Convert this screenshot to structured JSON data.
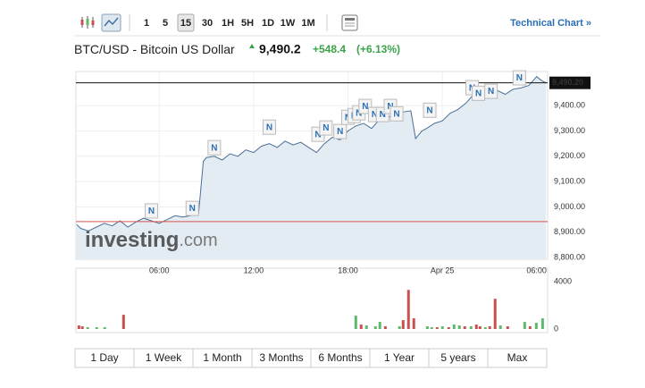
{
  "toolbar": {
    "intervals": [
      "1",
      "5",
      "15",
      "30",
      "1H",
      "5H",
      "1D",
      "1W",
      "1M"
    ],
    "link": "Technical Chart »"
  },
  "header": {
    "name": "BTC/USD - Bitcoin US Dollar",
    "price": "9,490.2",
    "change": "+548.4",
    "change_pct": "(+6.13%)"
  },
  "watermark": [
    "investing",
    ".com"
  ],
  "ranges": [
    "1 Day",
    "1 Week",
    "1 Month",
    "3 Months",
    "6 Months",
    "1 Year",
    "5 years",
    "Max"
  ],
  "chart_data": [
    {
      "type": "area",
      "color": "#4a6f96",
      "fill": "#e3ebf3",
      "x": [
        0.75,
        1.0,
        1.5,
        2,
        2.5,
        3,
        3.5,
        4,
        4.5,
        5,
        5.5,
        6,
        6.5,
        7,
        7.5,
        8,
        8.5,
        8.8,
        9,
        9.5,
        10,
        10.5,
        11,
        11.5,
        12,
        12.5,
        13,
        13.5,
        14,
        14.5,
        15,
        15.5,
        16,
        16.5,
        17,
        17.5,
        18,
        18.5,
        19,
        19.5,
        20,
        20.5,
        21,
        21.5,
        22,
        22.3,
        22.7,
        23,
        23.5,
        24,
        24.5,
        25,
        25.5,
        26,
        26.5,
        27,
        27.5,
        28,
        28.5,
        29,
        29.5,
        30,
        30.3,
        30.6
      ],
      "values": [
        8930,
        8915,
        8905,
        8920,
        8935,
        8925,
        8945,
        8920,
        8940,
        8955,
        8945,
        8935,
        8950,
        8965,
        8960,
        8965,
        8975,
        9180,
        9195,
        9200,
        9185,
        9210,
        9200,
        9225,
        9215,
        9240,
        9250,
        9235,
        9260,
        9245,
        9255,
        9235,
        9215,
        9250,
        9275,
        9265,
        9300,
        9320,
        9330,
        9310,
        9345,
        9355,
        9360,
        9375,
        9380,
        9270,
        9300,
        9310,
        9330,
        9340,
        9370,
        9385,
        9410,
        9445,
        9425,
        9440,
        9460,
        9445,
        9465,
        9470,
        9480,
        9515,
        9500,
        9490
      ],
      "xlim": [
        0.7,
        30.7
      ],
      "xticks": [
        {
          "value": 6,
          "label": "06:00"
        },
        {
          "value": 12,
          "label": "12:00"
        },
        {
          "value": 18,
          "label": "18:00"
        },
        {
          "value": 24,
          "label": "Apr 25"
        },
        {
          "value": 30,
          "label": "06:00"
        }
      ],
      "ylim": [
        8800,
        9535
      ],
      "yticks": [
        {
          "value": 9400,
          "label": "9,400.00"
        },
        {
          "value": 9300,
          "label": "9,300.00"
        },
        {
          "value": 9200,
          "label": "9,200.00"
        },
        {
          "value": 9100,
          "label": "9,100.00"
        },
        {
          "value": 9000,
          "label": "9,000.00"
        },
        {
          "value": 8900,
          "label": "8,900.00"
        },
        {
          "value": 8800,
          "label": "8,800.00"
        }
      ],
      "grid": true,
      "last_price": {
        "value": 9490.2,
        "label": "9,490.20"
      },
      "previous_close": 8941.8,
      "news": [
        {
          "x": 5.5,
          "y": 8984,
          "label": "N"
        },
        {
          "x": 8.1,
          "y": 8994,
          "label": "N"
        },
        {
          "x": 9.5,
          "y": 9234,
          "label": "N"
        },
        {
          "x": 13.0,
          "y": 9315,
          "label": "N"
        },
        {
          "x": 16.1,
          "y": 9287,
          "label": "N"
        },
        {
          "x": 16.6,
          "y": 9312,
          "label": "N"
        },
        {
          "x": 17.5,
          "y": 9298,
          "label": "N"
        },
        {
          "x": 18.0,
          "y": 9354,
          "label": "N"
        },
        {
          "x": 18.4,
          "y": 9361,
          "label": "N"
        },
        {
          "x": 18.7,
          "y": 9372,
          "label": "N"
        },
        {
          "x": 19.1,
          "y": 9397,
          "label": "N"
        },
        {
          "x": 19.7,
          "y": 9365,
          "label": "N"
        },
        {
          "x": 20.2,
          "y": 9365,
          "label": "N"
        },
        {
          "x": 20.7,
          "y": 9397,
          "label": "N"
        },
        {
          "x": 21.1,
          "y": 9368,
          "label": "N"
        },
        {
          "x": 23.2,
          "y": 9382,
          "label": "N"
        },
        {
          "x": 25.9,
          "y": 9471,
          "label": "N"
        },
        {
          "x": 26.3,
          "y": 9449,
          "label": "N"
        },
        {
          "x": 27.1,
          "y": 9457,
          "label": "N"
        },
        {
          "x": 28.9,
          "y": 9510,
          "label": "N"
        }
      ]
    },
    {
      "type": "bar",
      "x": [
        0.89,
        1.11,
        1.45,
        2.02,
        2.53,
        3.73,
        18.5,
        18.84,
        19.18,
        19.75,
        20.03,
        20.38,
        21.28,
        21.51,
        21.85,
        22.19,
        23.05,
        23.33,
        23.67,
        24.01,
        24.41,
        24.75,
        25.09,
        25.43,
        25.83,
        26.17,
        26.4,
        26.74,
        27.02,
        27.36,
        27.7,
        28.16,
        29.24,
        29.58,
        29.98,
        30.38
      ],
      "values": [
        300,
        225,
        150,
        150,
        150,
        1200,
        1125,
        375,
        300,
        225,
        600,
        225,
        225,
        750,
        3300,
        900,
        225,
        150,
        150,
        225,
        150,
        375,
        300,
        225,
        225,
        375,
        225,
        150,
        225,
        2550,
        300,
        225,
        600,
        225,
        525,
        900
      ],
      "colors": [
        "#c9504e",
        "#c9504e",
        "#5fb96a",
        "#5fb96a",
        "#5fb96a",
        "#c9504e",
        "#5fb96a",
        "#c9504e",
        "#5fb96a",
        "#5fb96a",
        "#5fb96a",
        "#c9504e",
        "#5fb96a",
        "#c9504e",
        "#c9504e",
        "#c9504e",
        "#5fb96a",
        "#5fb96a",
        "#c9504e",
        "#5fb96a",
        "#c9504e",
        "#5fb96a",
        "#5fb96a",
        "#c9504e",
        "#5fb96a",
        "#c9504e",
        "#c9504e",
        "#5fb96a",
        "#c9504e",
        "#c9504e",
        "#5fb96a",
        "#c9504e",
        "#5fb96a",
        "#c9504e",
        "#5fb96a",
        "#5fb96a"
      ],
      "xlim": [
        0.7,
        30.7
      ],
      "ylim": [
        0,
        4000
      ],
      "yticks": [
        4000,
        0
      ]
    }
  ]
}
